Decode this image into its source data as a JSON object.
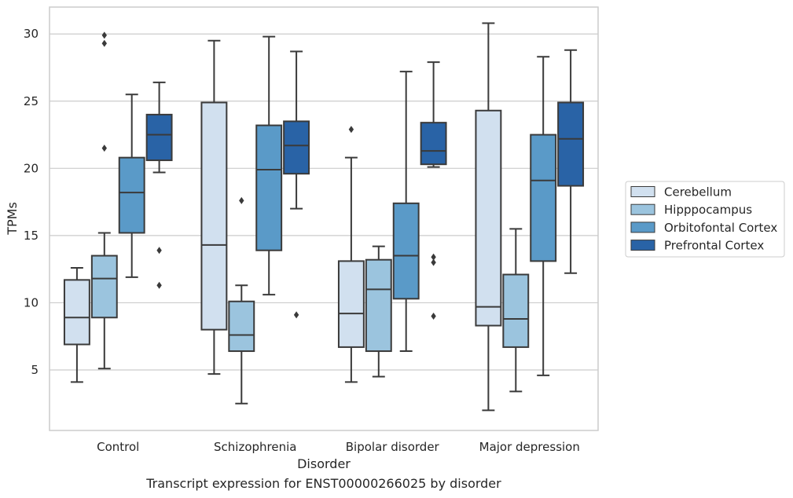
{
  "caption": "Transcript expression for ENST00000266025 by disorder",
  "chart_data": {
    "type": "boxplot",
    "xlabel": "Disorder",
    "ylabel": "TPMs",
    "ylim": [
      0.5,
      32
    ],
    "yticks": [
      5,
      10,
      15,
      20,
      25,
      30
    ],
    "grid": "horizontal",
    "legend_position": "right",
    "categories": [
      "Control",
      "Schizophrenia",
      "Bipolar disorder",
      "Major depression"
    ],
    "series": [
      {
        "name": "Cerebellum",
        "color": "#d1e0ef",
        "boxes": [
          {
            "whislo": 4.1,
            "q1": 6.9,
            "med": 8.9,
            "q3": 11.7,
            "whishi": 12.6,
            "fliers": []
          },
          {
            "whislo": 4.7,
            "q1": 8.0,
            "med": 14.3,
            "q3": 24.9,
            "whishi": 29.5,
            "fliers": []
          },
          {
            "whislo": 4.1,
            "q1": 6.7,
            "med": 9.2,
            "q3": 13.1,
            "whishi": 20.8,
            "fliers": [
              22.9
            ]
          },
          {
            "whislo": 2.0,
            "q1": 8.3,
            "med": 9.7,
            "q3": 24.3,
            "whishi": 30.8,
            "fliers": []
          }
        ]
      },
      {
        "name": "Hipppocampus",
        "color": "#9bc4de",
        "boxes": [
          {
            "whislo": 5.1,
            "q1": 8.9,
            "med": 11.8,
            "q3": 13.5,
            "whishi": 15.2,
            "fliers": [
              21.5,
              29.3,
              29.9
            ]
          },
          {
            "whislo": 2.5,
            "q1": 6.4,
            "med": 7.6,
            "q3": 10.1,
            "whishi": 11.3,
            "fliers": [
              17.6
            ]
          },
          {
            "whislo": 4.5,
            "q1": 6.4,
            "med": 11.0,
            "q3": 13.2,
            "whishi": 14.2,
            "fliers": []
          },
          {
            "whislo": 3.4,
            "q1": 6.7,
            "med": 8.8,
            "q3": 12.1,
            "whishi": 15.5,
            "fliers": []
          }
        ]
      },
      {
        "name": "Orbitofontal Cortex",
        "color": "#5a9ac8",
        "boxes": [
          {
            "whislo": 11.9,
            "q1": 15.2,
            "med": 18.2,
            "q3": 20.8,
            "whishi": 25.5,
            "fliers": []
          },
          {
            "whislo": 10.6,
            "q1": 13.9,
            "med": 19.9,
            "q3": 23.2,
            "whishi": 29.8,
            "fliers": []
          },
          {
            "whislo": 6.4,
            "q1": 10.3,
            "med": 13.5,
            "q3": 17.4,
            "whishi": 27.2,
            "fliers": []
          },
          {
            "whislo": 4.6,
            "q1": 13.1,
            "med": 19.1,
            "q3": 22.5,
            "whishi": 28.3,
            "fliers": []
          }
        ]
      },
      {
        "name": "Prefrontal Cortex",
        "color": "#2963a6",
        "boxes": [
          {
            "whislo": 19.7,
            "q1": 20.6,
            "med": 22.5,
            "q3": 24.0,
            "whishi": 26.4,
            "fliers": [
              11.3,
              13.9
            ]
          },
          {
            "whislo": 17.0,
            "q1": 19.6,
            "med": 21.7,
            "q3": 23.5,
            "whishi": 28.7,
            "fliers": [
              9.1
            ]
          },
          {
            "whislo": 20.1,
            "q1": 20.3,
            "med": 21.3,
            "q3": 23.4,
            "whishi": 27.9,
            "fliers": [
              9.0,
              13.0,
              13.4
            ]
          },
          {
            "whislo": 12.2,
            "q1": 18.7,
            "med": 22.2,
            "q3": 24.9,
            "whishi": 28.8,
            "fliers": []
          }
        ]
      }
    ]
  }
}
